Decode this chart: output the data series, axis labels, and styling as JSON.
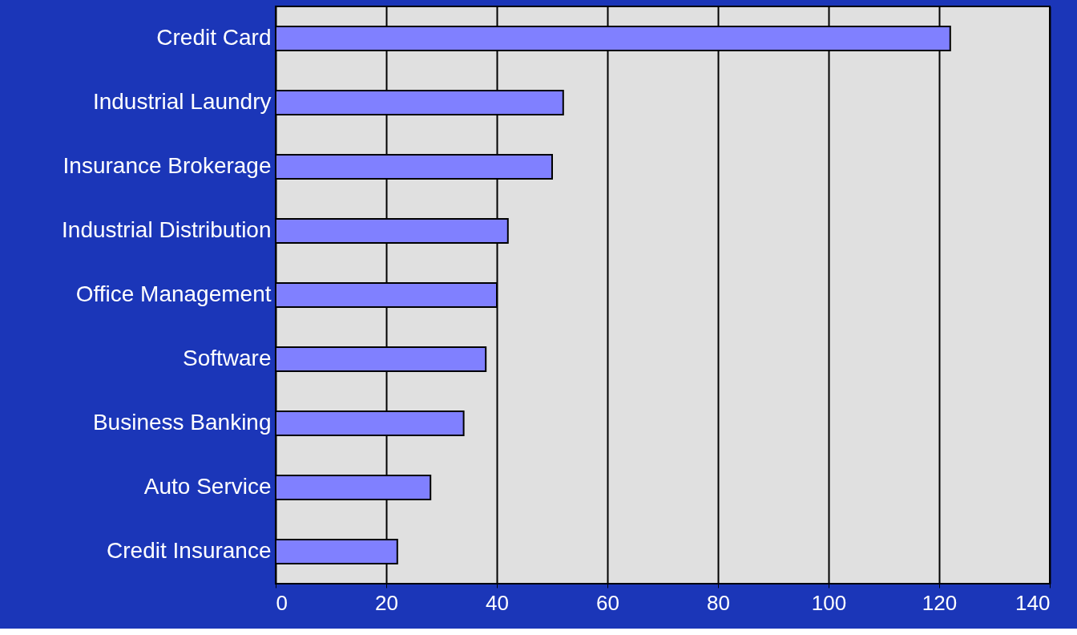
{
  "chart_data": {
    "type": "bar",
    "orientation": "horizontal",
    "categories": [
      "Credit Card",
      "Industrial Laundry",
      "Insurance Brokerage",
      "Industrial Distribution",
      "Office Management",
      "Software",
      "Business Banking",
      "Auto Service",
      "Credit Insurance"
    ],
    "values": [
      122,
      52,
      50,
      42,
      40,
      38,
      34,
      28,
      22
    ],
    "color": "#8080ff",
    "xlim": [
      0,
      140
    ],
    "xticks": [
      0,
      20,
      40,
      60,
      80,
      100,
      120,
      140
    ],
    "grid": "x"
  }
}
